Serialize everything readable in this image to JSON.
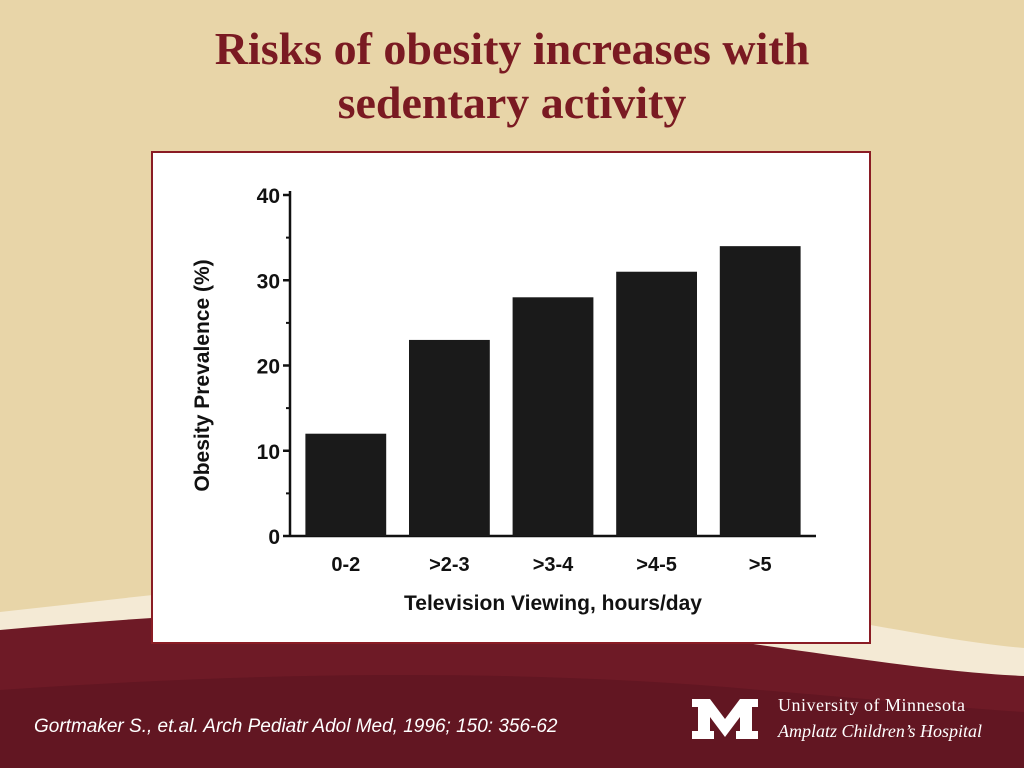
{
  "slide": {
    "title_line1": "Risks of obesity increases with",
    "title_line2": "sedentary activity",
    "citation": "Gortmaker S., et.al. Arch Pediatr Adol Med, 1996; 150: 356-62",
    "university": "University of Minnesota",
    "hospital": "Amplatz Children’s Hospital",
    "logo_letter": "M"
  },
  "colors": {
    "background": "#e8d5a8",
    "maroon": "#7a1a22",
    "bar": "#1a1a1a"
  },
  "chart_data": {
    "type": "bar",
    "categories": [
      "0-2",
      ">2-3",
      ">3-4",
      ">4-5",
      ">5"
    ],
    "values": [
      12,
      23,
      28,
      31,
      34
    ],
    "title": "",
    "xlabel": "Television Viewing, hours/day",
    "ylabel": "Obesity Prevalence (%)",
    "ylim": [
      0,
      40
    ],
    "yticks": [
      0,
      10,
      20,
      30,
      40
    ],
    "grid": false,
    "legend": false
  }
}
